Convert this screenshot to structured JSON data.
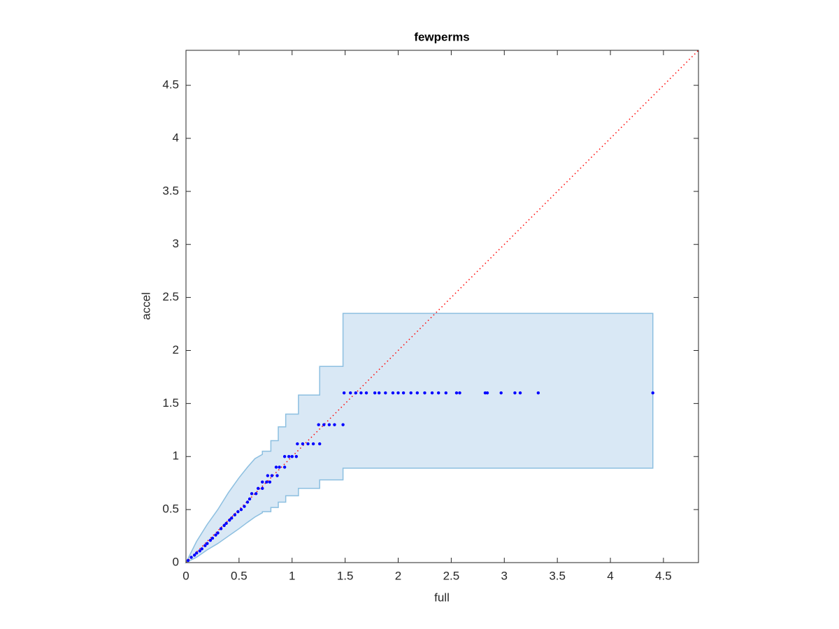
{
  "chart_data": {
    "type": "scatter",
    "title": "fewperms",
    "xlabel": "full",
    "ylabel": "accel",
    "xlim": [
      0,
      4.83
    ],
    "ylim": [
      0,
      4.83
    ],
    "xticks": [
      0,
      0.5,
      1,
      1.5,
      2,
      2.5,
      3,
      3.5,
      4,
      4.5
    ],
    "yticks": [
      0,
      0.5,
      1,
      1.5,
      2,
      2.5,
      3,
      3.5,
      4,
      4.5
    ],
    "box": true,
    "band": {
      "fill": "#d9e8f5",
      "edge": "#8cbfe0",
      "x": [
        0,
        0.1,
        0.2,
        0.3,
        0.4,
        0.5,
        0.58,
        0.65,
        0.72,
        0.72,
        0.8,
        0.8,
        0.87,
        0.87,
        0.94,
        0.94,
        1.06,
        1.06,
        1.26,
        1.26,
        1.48,
        1.48,
        4.4
      ],
      "upper": [
        0,
        0.2,
        0.36,
        0.5,
        0.66,
        0.8,
        0.9,
        0.98,
        1.02,
        1.05,
        1.05,
        1.15,
        1.15,
        1.28,
        1.28,
        1.4,
        1.4,
        1.58,
        1.58,
        1.85,
        1.85,
        2.35,
        2.35
      ],
      "lower": [
        0,
        0.05,
        0.12,
        0.18,
        0.25,
        0.32,
        0.38,
        0.43,
        0.47,
        0.48,
        0.48,
        0.52,
        0.52,
        0.57,
        0.57,
        0.63,
        0.63,
        0.7,
        0.7,
        0.78,
        0.78,
        0.89,
        0.89
      ]
    },
    "reference_line": {
      "color": "#ff0000",
      "x": [
        0,
        4.83
      ],
      "y": [
        0,
        4.83
      ]
    },
    "points": {
      "color": "#0000ff",
      "x": [
        0.02,
        0.05,
        0.08,
        0.1,
        0.13,
        0.15,
        0.18,
        0.2,
        0.23,
        0.25,
        0.28,
        0.3,
        0.33,
        0.36,
        0.38,
        0.41,
        0.43,
        0.46,
        0.49,
        0.52,
        0.55,
        0.58,
        0.6,
        0.62,
        0.66,
        0.68,
        0.72,
        0.72,
        0.76,
        0.79,
        0.77,
        0.81,
        0.86,
        0.85,
        0.88,
        0.93,
        0.93,
        0.97,
        1.0,
        1.04,
        1.05,
        1.1,
        1.15,
        1.2,
        1.26,
        1.25,
        1.3,
        1.35,
        1.4,
        1.48,
        1.49,
        1.55,
        1.6,
        1.65,
        1.7,
        1.78,
        1.82,
        1.88,
        1.95,
        2.0,
        2.05,
        2.12,
        2.18,
        2.25,
        2.32,
        2.38,
        2.45,
        2.55,
        2.58,
        2.82,
        2.84,
        2.97,
        3.1,
        3.15,
        3.32,
        4.4
      ],
      "y": [
        0.02,
        0.05,
        0.07,
        0.09,
        0.11,
        0.13,
        0.16,
        0.18,
        0.21,
        0.23,
        0.26,
        0.28,
        0.32,
        0.35,
        0.37,
        0.4,
        0.42,
        0.45,
        0.48,
        0.5,
        0.53,
        0.57,
        0.6,
        0.65,
        0.65,
        0.7,
        0.7,
        0.76,
        0.76,
        0.76,
        0.82,
        0.82,
        0.82,
        0.9,
        0.9,
        0.9,
        1.0,
        1.0,
        1.0,
        1.0,
        1.12,
        1.12,
        1.12,
        1.12,
        1.12,
        1.3,
        1.3,
        1.3,
        1.3,
        1.3,
        1.6,
        1.6,
        1.6,
        1.6,
        1.6,
        1.6,
        1.6,
        1.6,
        1.6,
        1.6,
        1.6,
        1.6,
        1.6,
        1.6,
        1.6,
        1.6,
        1.6,
        1.6,
        1.6,
        1.6,
        1.6,
        1.6,
        1.6,
        1.6,
        1.6,
        1.6
      ]
    }
  }
}
